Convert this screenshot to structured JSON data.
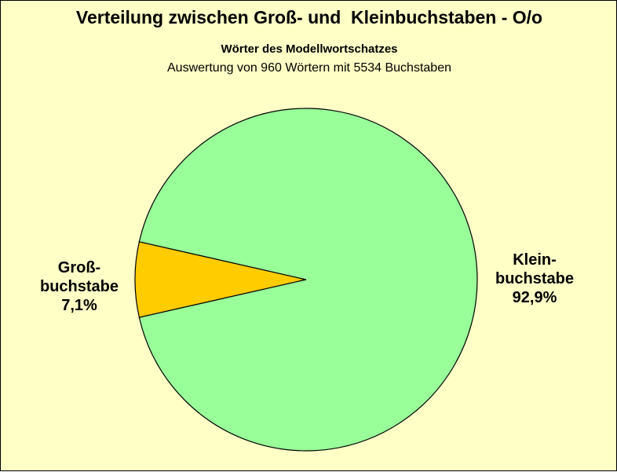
{
  "title": "Verteilung zwischen Groß- und  Kleinbuchstaben - O/o",
  "subtitle": "Wörter des Modellwortschatzes",
  "subtitle2": "Auswertung von 960 Wörtern mit 5534 Buchstaben",
  "colors": {
    "background": "#ffffc6",
    "gross": "#ffcc00",
    "klein": "#99ff99",
    "outline": "#000000"
  },
  "chart_data": {
    "type": "pie",
    "title": "Verteilung zwischen Groß- und  Kleinbuchstaben - O/o",
    "subtitle": "Wörter des Modellwortschatzes",
    "slices": [
      {
        "name": "Großbuchstabe",
        "value": 7.1,
        "color": "#ffcc00",
        "label_lines": [
          "Groß-",
          "buchstabe",
          "7,1%"
        ]
      },
      {
        "name": "Kleinbuchstabe",
        "value": 92.9,
        "color": "#99ff99",
        "label_lines": [
          "Klein-",
          "buchstabe",
          "92,9%"
        ]
      }
    ]
  }
}
